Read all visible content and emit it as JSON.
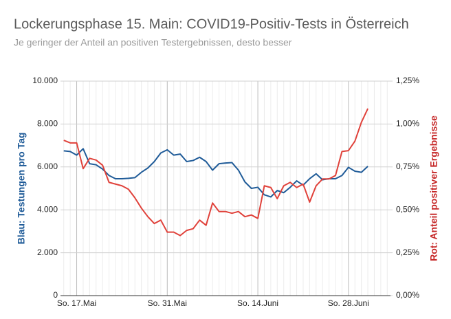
{
  "chart_data": {
    "type": "line",
    "title": "Lockerungsphase 15. Main: COVID19-Positiv-Tests in Österreich",
    "subtitle": "Je geringer der Anteil an positiven Testergebnissen, desto besser",
    "y_label": "Blau: Testungen pro Tag",
    "y2_label": "Rot: Anteil positiver Ergebnisse",
    "categories": [
      null,
      null,
      "So. 17.Mai",
      null,
      null,
      null,
      null,
      null,
      null,
      null,
      null,
      null,
      null,
      null,
      null,
      null,
      "So. 31.Mai",
      null,
      null,
      null,
      null,
      null,
      null,
      null,
      null,
      null,
      null,
      null,
      null,
      null,
      "So. 14.Juni",
      null,
      null,
      null,
      null,
      null,
      null,
      null,
      null,
      null,
      null,
      null,
      null,
      null,
      "So. 28.Juni",
      null,
      null,
      null,
      null,
      null,
      null
    ],
    "series": [
      {
        "name": "Blau: Testungen pro Tag",
        "color": "#1f5b98",
        "axis": "y",
        "values": [
          6750,
          6720,
          6550,
          6850,
          6150,
          6100,
          5900,
          5600,
          5450,
          5450,
          5470,
          5500,
          5750,
          5950,
          6250,
          6650,
          6800,
          6550,
          6600,
          6250,
          6300,
          6450,
          6250,
          5850,
          6150,
          6180,
          6200,
          5850,
          5300,
          5000,
          5050,
          4700,
          4600,
          4900,
          4800,
          5050,
          5350,
          5150,
          5450,
          5680,
          5400,
          5450,
          5450,
          5600,
          5980,
          5800,
          5750,
          6030,
          null,
          null,
          null
        ]
      },
      {
        "name": "Rot: Anteil positiver Ergebnisse",
        "color": "#e0413a",
        "axis": "y2",
        "values": [
          0.905,
          0.89,
          0.89,
          0.74,
          0.8,
          0.79,
          0.76,
          0.66,
          0.65,
          0.64,
          0.62,
          0.57,
          0.51,
          0.46,
          0.42,
          0.44,
          0.37,
          0.37,
          0.35,
          0.38,
          0.39,
          0.44,
          0.41,
          0.54,
          0.49,
          0.49,
          0.48,
          0.49,
          0.46,
          0.47,
          0.45,
          0.64,
          0.63,
          0.565,
          0.64,
          0.66,
          0.63,
          0.65,
          0.545,
          0.64,
          0.68,
          0.68,
          0.7,
          0.84,
          0.845,
          0.9,
          1.01,
          1.09,
          null,
          null,
          null
        ]
      }
    ],
    "ylim": [
      0,
      10000
    ],
    "yticks": [
      0,
      {
        "value": 2000,
        "label": "2.000"
      },
      {
        "value": 4000,
        "label": "4.000"
      },
      {
        "value": 6000,
        "label": "6.000"
      },
      {
        "value": 8000,
        "label": "8.000"
      },
      {
        "value": 10000,
        "label": "10.000"
      }
    ],
    "y2lim": [
      0,
      1.25
    ],
    "y2ticks": [
      {
        "value": 0,
        "label": "0,00%"
      },
      {
        "value": 0.25,
        "label": "0,25%"
      },
      {
        "value": 0.5,
        "label": "0,50%"
      },
      {
        "value": 0.75,
        "label": "0,75%"
      },
      {
        "value": 1,
        "label": "1,00%"
      },
      {
        "value": 1.25,
        "label": "1,25%"
      }
    ],
    "grid": true
  }
}
